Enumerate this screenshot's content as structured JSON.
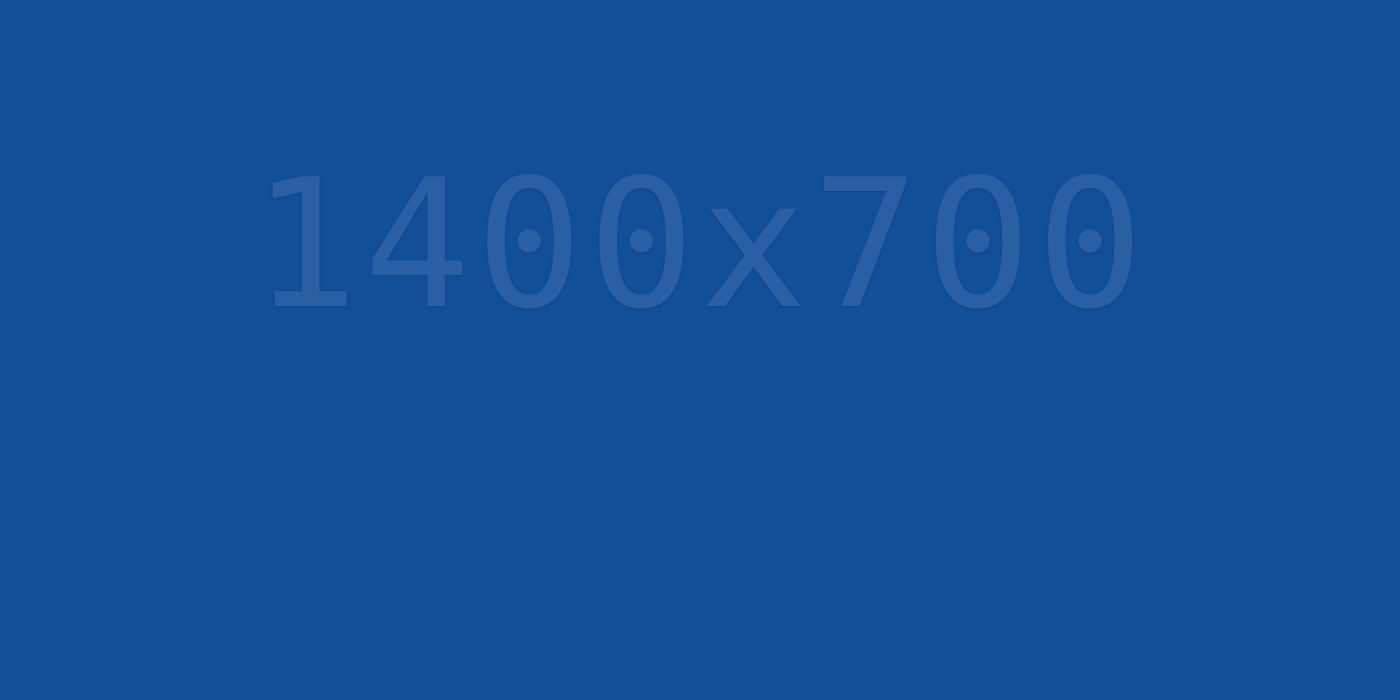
{
  "placeholder": {
    "text": "1400x700",
    "background_color": "#134e99",
    "text_color": "#2b5fa4"
  }
}
